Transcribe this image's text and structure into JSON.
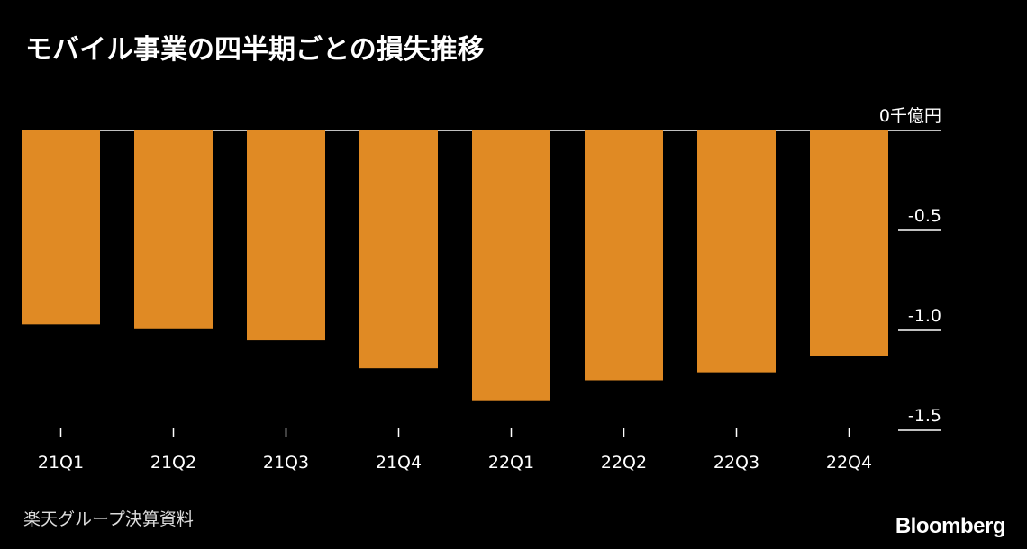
{
  "title": "モバイル事業の四半期ごとの損失推移",
  "source": "楽天グループ決算資料",
  "brand": "Bloomberg",
  "bar_color": "#E08A24",
  "chart_data": {
    "type": "bar",
    "categories": [
      "21Q1",
      "21Q2",
      "21Q3",
      "21Q4",
      "22Q1",
      "22Q2",
      "22Q3",
      "22Q4"
    ],
    "values": [
      -0.97,
      -0.99,
      -1.05,
      -1.19,
      -1.35,
      -1.25,
      -1.21,
      -1.13
    ],
    "ylim": [
      -1.5,
      0
    ],
    "yticks": [
      {
        "value": 0,
        "label": "0千億円"
      },
      {
        "value": -0.5,
        "label": "-0.5"
      },
      {
        "value": -1.0,
        "label": "-1.0"
      },
      {
        "value": -1.5,
        "label": "-1.5"
      }
    ],
    "axis_position": "right"
  }
}
